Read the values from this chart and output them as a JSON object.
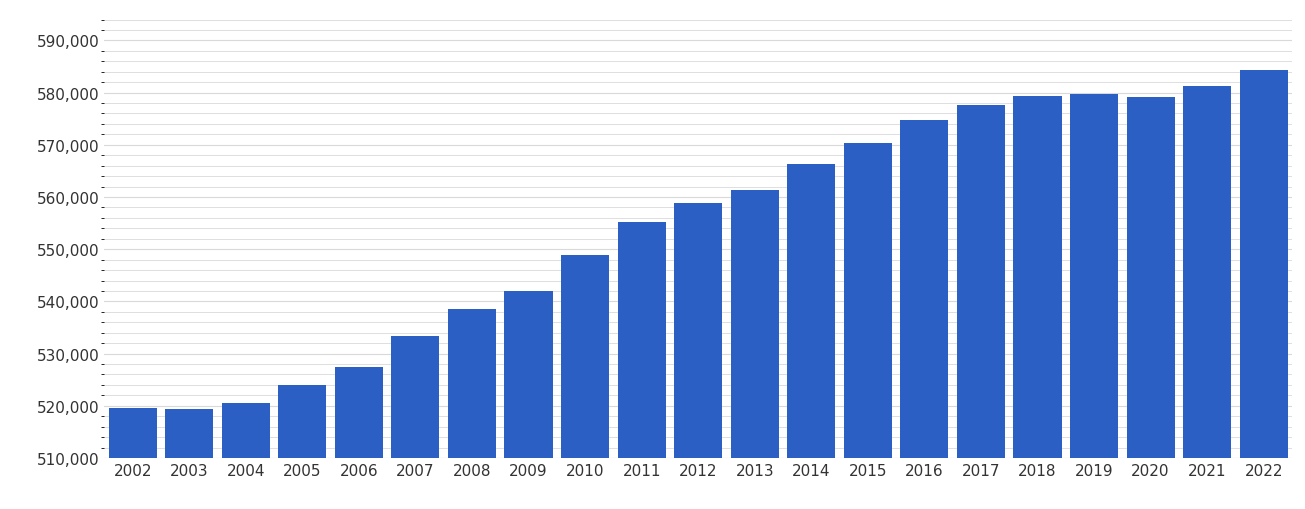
{
  "years": [
    "2002",
    "2003",
    "2004",
    "2005",
    "2006",
    "2007",
    "2008",
    "2009",
    "2010",
    "2011",
    "2012",
    "2013",
    "2014",
    "2015",
    "2016",
    "2017",
    "2018",
    "2019",
    "2020",
    "2021",
    "2022"
  ],
  "values": [
    519600,
    519400,
    520600,
    524000,
    527400,
    533400,
    538600,
    542000,
    548800,
    555200,
    558800,
    561400,
    566400,
    570300,
    574700,
    577700,
    579300,
    579800,
    579200,
    581300,
    584400
  ],
  "bar_color": "#2B5FC3",
  "background_color": "#ffffff",
  "ylim": [
    510000,
    595000
  ],
  "yticks": [
    510000,
    520000,
    530000,
    540000,
    550000,
    560000,
    570000,
    580000,
    590000
  ],
  "minor_ytick_interval": 2000,
  "grid_color": "#d9d9d9",
  "tick_color": "#333333",
  "tick_fontsize": 11
}
